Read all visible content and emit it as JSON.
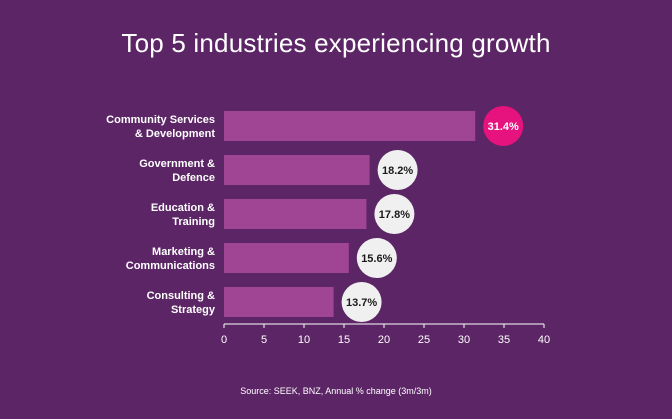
{
  "chart_data": {
    "type": "bar",
    "orientation": "horizontal",
    "title": "Top 5 industries experiencing growth",
    "categories": [
      [
        "Community Services",
        "& Development"
      ],
      [
        "Government &",
        "Defence"
      ],
      [
        "Education &",
        "Training"
      ],
      [
        "Marketing &",
        "Communications"
      ],
      [
        "Consulting &",
        "Strategy"
      ]
    ],
    "values": [
      31.4,
      18.2,
      17.8,
      15.6,
      13.7
    ],
    "value_labels": [
      "31.4%",
      "18.2%",
      "17.8%",
      "15.6%",
      "13.7%"
    ],
    "xlim": [
      0,
      40
    ],
    "xticks": [
      0,
      5,
      10,
      15,
      20,
      25,
      30,
      35,
      40
    ],
    "grid": false,
    "source": "Source: SEEK, BNZ, Annual % change (3m/3m)",
    "colors": {
      "background": "#5c2566",
      "bar": "#a04594",
      "highlight_badge": "#e6127e",
      "badge": "#f0f0f0",
      "badge_text": "#1a1a1a",
      "axis": "#ffffff"
    }
  }
}
